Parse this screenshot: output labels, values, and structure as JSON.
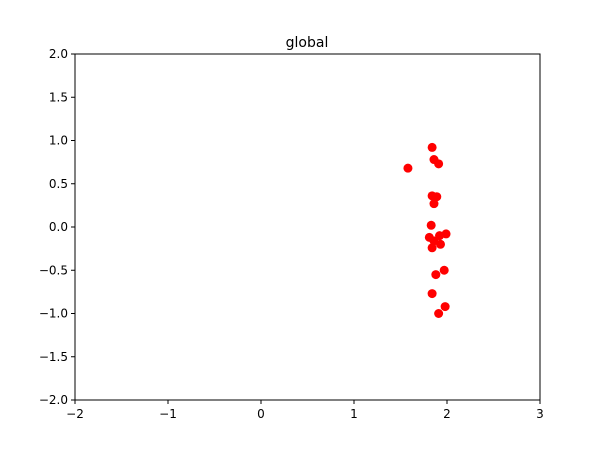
{
  "chart_data": {
    "type": "scatter",
    "title": "global",
    "xlabel": "",
    "ylabel": "",
    "xlim": [
      -2,
      3
    ],
    "ylim": [
      -2,
      2
    ],
    "xticks": [
      -2,
      -1,
      0,
      1,
      2,
      3
    ],
    "yticks": [
      -2.0,
      -1.5,
      -1.0,
      -0.5,
      0.0,
      0.5,
      1.0,
      1.5,
      2.0
    ],
    "xtick_labels": [
      "−2",
      "−1",
      "0",
      "1",
      "2",
      "3"
    ],
    "ytick_labels": [
      "−2.0",
      "−1.5",
      "−1.0",
      "−0.5",
      "0.0",
      "0.5",
      "1.0",
      "1.5",
      "2.0"
    ],
    "grid": false,
    "series": [
      {
        "color": "#ff0000",
        "marker": "circle",
        "points": [
          {
            "x": 1.84,
            "y": 0.92
          },
          {
            "x": 1.86,
            "y": 0.78
          },
          {
            "x": 1.91,
            "y": 0.73
          },
          {
            "x": 1.58,
            "y": 0.68
          },
          {
            "x": 1.84,
            "y": 0.36
          },
          {
            "x": 1.89,
            "y": 0.35
          },
          {
            "x": 1.86,
            "y": 0.27
          },
          {
            "x": 1.83,
            "y": 0.02
          },
          {
            "x": 1.99,
            "y": -0.08
          },
          {
            "x": 1.92,
            "y": -0.1
          },
          {
            "x": 1.81,
            "y": -0.12
          },
          {
            "x": 1.86,
            "y": -0.16
          },
          {
            "x": 1.93,
            "y": -0.2
          },
          {
            "x": 1.84,
            "y": -0.24
          },
          {
            "x": 1.97,
            "y": -0.5
          },
          {
            "x": 1.88,
            "y": -0.55
          },
          {
            "x": 1.84,
            "y": -0.77
          },
          {
            "x": 1.98,
            "y": -0.92
          },
          {
            "x": 1.91,
            "y": -1.0
          }
        ]
      }
    ]
  }
}
